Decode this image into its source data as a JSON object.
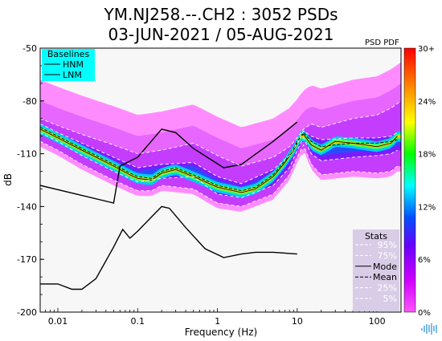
{
  "chart_data": {
    "type": "heatmap",
    "title_line1": "YM.NJ258.--.CH2 : 3052 PSDs",
    "title_line2": "03-JUN-2021 / 05-AUG-2021",
    "xlabel": "Frequency (Hz)",
    "ylabel": "dB",
    "x_scale": "log",
    "xlim": [
      0.006,
      200
    ],
    "ylim": [
      -200,
      -50
    ],
    "x_ticks": [
      0.01,
      0.1,
      1,
      10,
      100
    ],
    "x_tick_labels": [
      "0.01",
      "0.1",
      "1",
      "10",
      "100"
    ],
    "y_ticks": [
      -50,
      -80,
      -110,
      -140,
      -170,
      -200
    ],
    "y_tick_labels": [
      "-50",
      "-80",
      "-110",
      "-140",
      "-170",
      "-200"
    ],
    "background_color": "#f7f7f7",
    "colorbar": {
      "label": "PSD PDF",
      "ticks": [
        "30+",
        "24%",
        "18%",
        "12%",
        "6%",
        "0%"
      ],
      "colors": [
        "#ff0000",
        "#ff8c00",
        "#ffff00",
        "#00ff00",
        "#00ffff",
        "#0050ff",
        "#6a00ff",
        "#d000ff",
        "#ff55ff"
      ]
    },
    "baselines_legend": {
      "title": "Baselines",
      "items": [
        "HNM",
        "LNM"
      ],
      "background": "#00ffff"
    },
    "stats_legend": {
      "title": "Stats",
      "items": [
        {
          "label": "95%",
          "style": "dashed",
          "color": "#ffffff"
        },
        {
          "label": "75%",
          "style": "dashed",
          "color": "#ffffff"
        },
        {
          "label": "Mode",
          "style": "solid",
          "color": "#000000"
        },
        {
          "label": "Mean",
          "style": "dashed",
          "color": "#000000"
        },
        {
          "label": "25%",
          "style": "dashed",
          "color": "#ffffff"
        },
        {
          "label": "5%",
          "style": "dashed",
          "color": "#ffffff"
        }
      ],
      "background": "#d8cce6"
    },
    "series": [
      {
        "name": "HNM",
        "x": [
          0.006,
          0.05,
          0.06,
          0.1,
          0.2,
          0.3,
          0.5,
          1.2,
          2,
          5,
          10
        ],
        "y": [
          -128,
          -138,
          -117,
          -112,
          -96,
          -98,
          -107,
          -118,
          -116,
          -103,
          -92
        ]
      },
      {
        "name": "LNM",
        "x": [
          0.006,
          0.01,
          0.015,
          0.02,
          0.03,
          0.05,
          0.065,
          0.08,
          0.1,
          0.2,
          0.25,
          0.4,
          0.7,
          1.2,
          2,
          3,
          5,
          10
        ],
        "y": [
          -184,
          -184,
          -187,
          -187,
          -181,
          -163,
          -153,
          -158,
          -154,
          -140,
          -141,
          -152,
          -164,
          -169,
          -167,
          -166,
          -166,
          -167
        ]
      },
      {
        "name": "Mode",
        "x": [
          0.006,
          0.01,
          0.02,
          0.05,
          0.08,
          0.1,
          0.15,
          0.2,
          0.3,
          0.5,
          1,
          2,
          3,
          5,
          7,
          9,
          10,
          11,
          12,
          15,
          20,
          30,
          50,
          100,
          150,
          180
        ],
        "y": [
          -96,
          -101,
          -108,
          -117,
          -122,
          -124,
          -125,
          -121,
          -119,
          -123,
          -129,
          -132,
          -130,
          -123,
          -115,
          -108,
          -104,
          -100,
          -99,
          -105,
          -108,
          -103,
          -104,
          -106,
          -104,
          -100
        ]
      },
      {
        "name": "Mean",
        "x": [
          0.006,
          0.01,
          0.02,
          0.05,
          0.08,
          0.1,
          0.15,
          0.2,
          0.3,
          0.5,
          1,
          2,
          3,
          5,
          7,
          9,
          10,
          12,
          15,
          20,
          30,
          50,
          100,
          150,
          180
        ],
        "y": [
          -95,
          -100,
          -107,
          -116,
          -121,
          -123,
          -124,
          -120,
          -118,
          -122,
          -128,
          -131,
          -129,
          -122,
          -114,
          -107,
          -103,
          -98,
          -103,
          -106,
          -105,
          -104,
          -104,
          -103,
          -102
        ]
      },
      {
        "name": "95%",
        "x": [
          0.006,
          0.01,
          0.02,
          0.05,
          0.1,
          0.2,
          0.5,
          1,
          2,
          5,
          8,
          10,
          12,
          15,
          20,
          50,
          100,
          150,
          200
        ],
        "y": [
          -90,
          -94,
          -99,
          -105,
          -110,
          -108,
          -104,
          -111,
          -117,
          -112,
          -106,
          -101,
          -96,
          -93,
          -95,
          -90,
          -88,
          -84,
          -80
        ]
      },
      {
        "name": "75%",
        "x": [
          0.006,
          0.01,
          0.02,
          0.05,
          0.1,
          0.2,
          0.5,
          1,
          2,
          5,
          8,
          10,
          12,
          15,
          20,
          50,
          100,
          150,
          180
        ],
        "y": [
          -93,
          -98,
          -104,
          -112,
          -118,
          -116,
          -115,
          -123,
          -127,
          -119,
          -111,
          -104,
          -97,
          -100,
          -102,
          -101,
          -101,
          -100,
          -98
        ]
      },
      {
        "name": "25%",
        "x": [
          0.006,
          0.01,
          0.02,
          0.05,
          0.1,
          0.2,
          0.5,
          1,
          2,
          5,
          8,
          10,
          12,
          15,
          20,
          50,
          100,
          150,
          180
        ],
        "y": [
          -98,
          -103,
          -111,
          -120,
          -126,
          -124,
          -123,
          -133,
          -135,
          -128,
          -118,
          -108,
          -101,
          -110,
          -114,
          -112,
          -111,
          -110,
          -108
        ]
      },
      {
        "name": "5%",
        "x": [
          0.006,
          0.01,
          0.02,
          0.05,
          0.1,
          0.15,
          0.2,
          0.5,
          1,
          2,
          5,
          8,
          10,
          12,
          15,
          20,
          50,
          100,
          150,
          180
        ],
        "y": [
          -103,
          -108,
          -116,
          -125,
          -131,
          -131,
          -128,
          -130,
          -138,
          -140,
          -133,
          -122,
          -112,
          -105,
          -116,
          -122,
          -120,
          -121,
          -120,
          -117
        ]
      }
    ]
  }
}
